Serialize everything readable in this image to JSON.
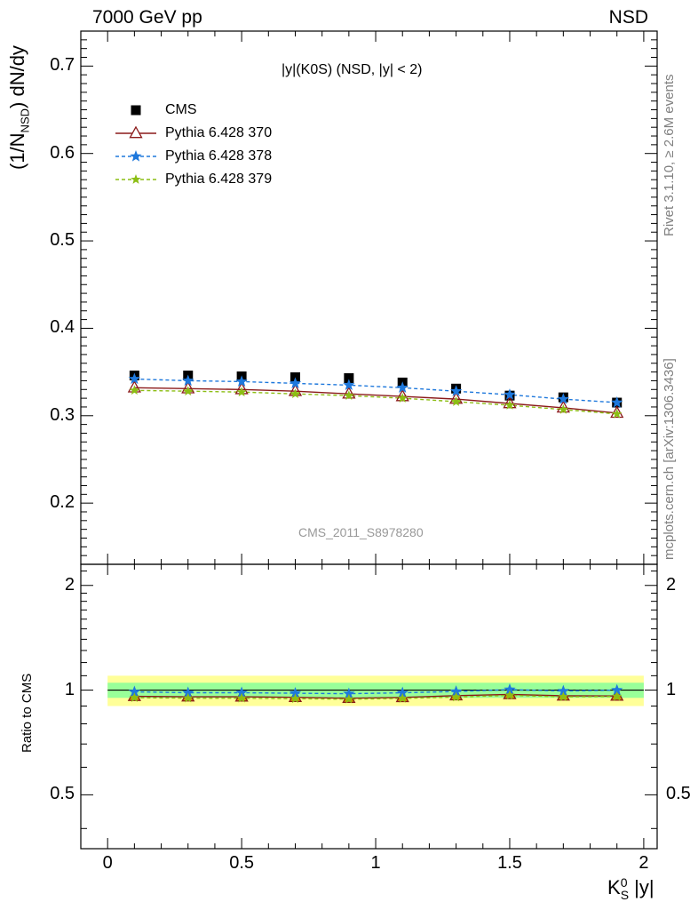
{
  "header": {
    "left": "7000 GeV pp",
    "right": "NSD"
  },
  "side_text": {
    "top": "Rivet 3.1.10, ≥ 2.6M events",
    "bottom": "mcplots.cern.ch [arXiv:1306.3436]"
  },
  "watermark": "CMS_2011_S8978280",
  "plot_title": "|y|(K0S) (NSD, |y| < 2)",
  "ylabel_main": "(1/N_NSD) dN/dy",
  "ylabel_ratio": "Ratio to CMS",
  "xlabel": "K_S^0 |y|",
  "legend": [
    {
      "label": "CMS",
      "marker": "square",
      "color": "#000000"
    },
    {
      "label": "Pythia 6.428 370",
      "marker": "triangle",
      "color": "#8b1a1a"
    },
    {
      "label": "Pythia 6.428 378",
      "marker": "star",
      "color": "#1e78dc"
    },
    {
      "label": "Pythia 6.428 379",
      "marker": "star",
      "color": "#8cbe14"
    }
  ],
  "chart_data": {
    "type": "line",
    "x": [
      0.1,
      0.3,
      0.5,
      0.7,
      0.9,
      1.1,
      1.3,
      1.5,
      1.7,
      1.9
    ],
    "xlim": [
      -0.1,
      2.05
    ],
    "ylim": [
      0.13,
      0.74
    ],
    "ratio_ylim": [
      0.35,
      2.3
    ],
    "x_ticks": [
      "0",
      "0.5",
      "1",
      "1.5",
      "2"
    ],
    "y_ticks": [
      "0.2",
      "0.3",
      "0.4",
      "0.5",
      "0.6",
      "0.7"
    ],
    "ratio_ticks": [
      "0.5",
      "1",
      "2"
    ],
    "series": [
      {
        "name": "CMS",
        "values": [
          0.346,
          0.346,
          0.345,
          0.344,
          0.343,
          0.338,
          0.331,
          0.323,
          0.321,
          0.315
        ]
      },
      {
        "name": "Pythia 6.428 370",
        "values": [
          0.332,
          0.331,
          0.33,
          0.328,
          0.325,
          0.322,
          0.319,
          0.314,
          0.309,
          0.303
        ]
      },
      {
        "name": "Pythia 6.428 378",
        "values": [
          0.342,
          0.34,
          0.339,
          0.337,
          0.335,
          0.332,
          0.328,
          0.324,
          0.319,
          0.315
        ]
      },
      {
        "name": "Pythia 6.428 379",
        "values": [
          0.329,
          0.328,
          0.327,
          0.325,
          0.323,
          0.32,
          0.316,
          0.312,
          0.307,
          0.302
        ]
      }
    ],
    "ratio_bands": {
      "inner": [
        0.95,
        1.05
      ],
      "outer": [
        0.9,
        1.1
      ]
    },
    "colors": {
      "inner_band": "#99ff99",
      "outer_band": "#ffff99"
    }
  }
}
